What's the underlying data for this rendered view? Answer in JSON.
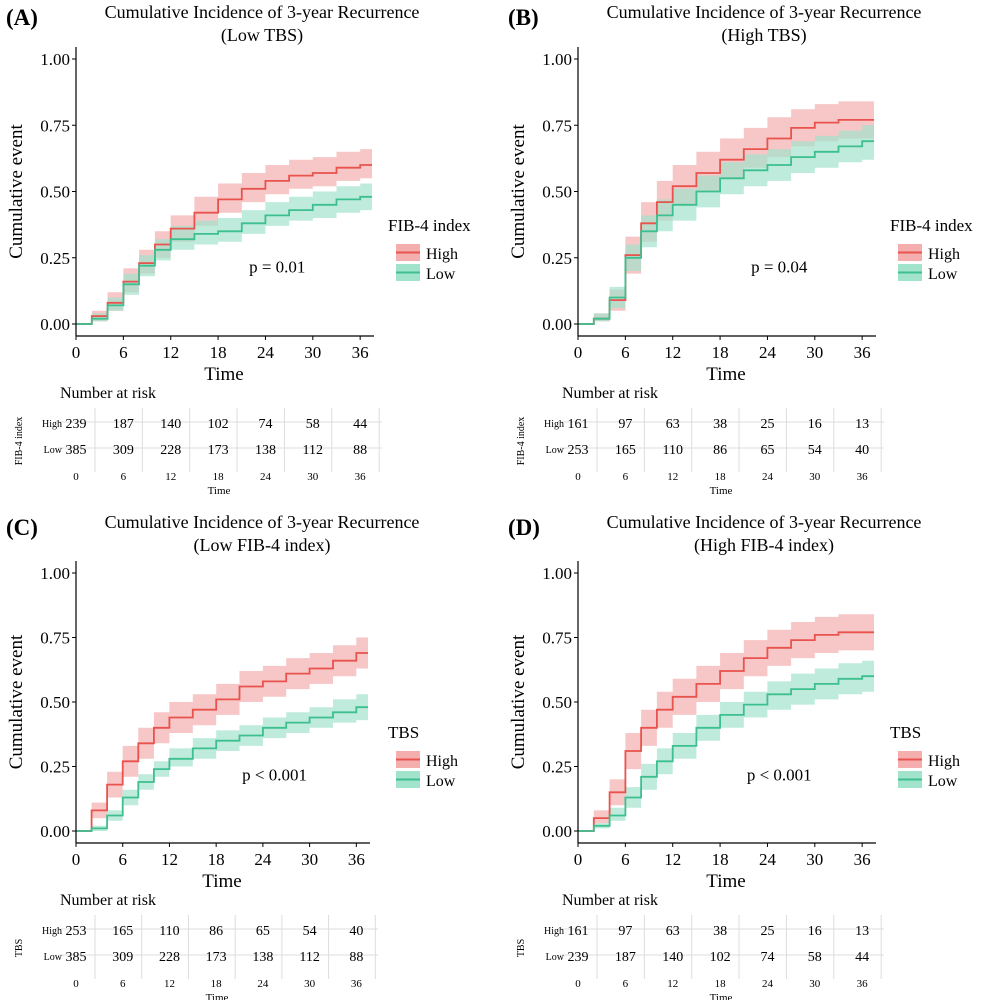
{
  "number_at_risk_label": "Number at risk",
  "x_axis_label": "Time",
  "y_axis_label": "Cumulative event",
  "colors": {
    "high": "#e8534d",
    "low": "#3dbf8f",
    "high_band": "#f4aeae",
    "low_band": "#a2e3cc"
  },
  "chart_data": [
    {
      "panel_label": "(A)",
      "type": "line",
      "title": "Cumulative Incidence of 3-year Recurrence",
      "subtitle": "(Low TBS)",
      "xlabel": "Time",
      "ylabel": "Cumulative event",
      "xlim": [
        0,
        37.5
      ],
      "ylim": [
        0,
        1.0
      ],
      "x_ticks": [
        0,
        6,
        12,
        18,
        24,
        30,
        36
      ],
      "y_ticks": [
        "0.00",
        "0.25",
        "0.50",
        "0.75",
        "1.00"
      ],
      "legend_title": "FIB-4 index",
      "p_value": "p = 0.01",
      "series": [
        {
          "name": "High",
          "x": [
            0,
            2,
            4,
            6,
            8,
            10,
            12,
            15,
            18,
            21,
            24,
            27,
            30,
            33,
            36,
            37.5
          ],
          "values": [
            0,
            0.03,
            0.08,
            0.16,
            0.23,
            0.3,
            0.36,
            0.42,
            0.47,
            0.51,
            0.54,
            0.56,
            0.57,
            0.59,
            0.6,
            0.6
          ],
          "lower": [
            0,
            0.01,
            0.05,
            0.12,
            0.19,
            0.25,
            0.31,
            0.37,
            0.42,
            0.46,
            0.49,
            0.51,
            0.52,
            0.54,
            0.55,
            0.55
          ],
          "upper": [
            0,
            0.05,
            0.12,
            0.21,
            0.28,
            0.35,
            0.41,
            0.48,
            0.53,
            0.57,
            0.6,
            0.62,
            0.63,
            0.65,
            0.66,
            0.66
          ]
        },
        {
          "name": "Low",
          "x": [
            0,
            2,
            4,
            6,
            8,
            10,
            12,
            15,
            18,
            21,
            24,
            27,
            30,
            33,
            36,
            37.5
          ],
          "values": [
            0,
            0.02,
            0.07,
            0.15,
            0.22,
            0.28,
            0.32,
            0.34,
            0.35,
            0.38,
            0.41,
            0.43,
            0.45,
            0.47,
            0.48,
            0.48
          ],
          "lower": [
            0,
            0.01,
            0.05,
            0.11,
            0.18,
            0.24,
            0.28,
            0.3,
            0.31,
            0.34,
            0.37,
            0.39,
            0.4,
            0.42,
            0.43,
            0.43
          ],
          "upper": [
            0,
            0.04,
            0.1,
            0.19,
            0.26,
            0.32,
            0.37,
            0.39,
            0.4,
            0.43,
            0.46,
            0.48,
            0.5,
            0.52,
            0.53,
            0.53
          ]
        }
      ],
      "risk_table": {
        "y_title": "FIB-4 index",
        "x_title": "Time",
        "times": [
          0,
          6,
          12,
          18,
          24,
          30,
          36
        ],
        "rows": [
          {
            "label": "High",
            "values": [
              239,
              187,
              140,
              102,
              74,
              58,
              44
            ]
          },
          {
            "label": "Low",
            "values": [
              385,
              309,
              228,
              173,
              138,
              112,
              88
            ]
          }
        ]
      }
    },
    {
      "panel_label": "(B)",
      "type": "line",
      "title": "Cumulative Incidence of 3-year Recurrence",
      "subtitle": "(High TBS)",
      "xlabel": "Time",
      "ylabel": "Cumulative event",
      "xlim": [
        0,
        37.5
      ],
      "ylim": [
        0,
        1.0
      ],
      "x_ticks": [
        0,
        6,
        12,
        18,
        24,
        30,
        36
      ],
      "y_ticks": [
        "0.00",
        "0.25",
        "0.50",
        "0.75",
        "1.00"
      ],
      "legend_title": "FIB-4 index",
      "p_value": "p = 0.04",
      "series": [
        {
          "name": "High",
          "x": [
            0,
            2,
            4,
            6,
            8,
            10,
            12,
            15,
            18,
            21,
            24,
            27,
            30,
            33,
            36,
            37.5
          ],
          "values": [
            0,
            0.02,
            0.09,
            0.26,
            0.38,
            0.46,
            0.52,
            0.57,
            0.62,
            0.66,
            0.7,
            0.74,
            0.76,
            0.77,
            0.77,
            0.77
          ],
          "lower": [
            0,
            0.01,
            0.05,
            0.19,
            0.31,
            0.39,
            0.45,
            0.5,
            0.55,
            0.59,
            0.63,
            0.67,
            0.69,
            0.7,
            0.7,
            0.7
          ],
          "upper": [
            0,
            0.04,
            0.13,
            0.33,
            0.46,
            0.54,
            0.6,
            0.65,
            0.7,
            0.74,
            0.78,
            0.81,
            0.83,
            0.84,
            0.84,
            0.84
          ]
        },
        {
          "name": "Low",
          "x": [
            0,
            2,
            4,
            6,
            8,
            10,
            12,
            15,
            18,
            21,
            24,
            27,
            30,
            33,
            36,
            37.5
          ],
          "values": [
            0,
            0.02,
            0.1,
            0.25,
            0.35,
            0.41,
            0.45,
            0.5,
            0.55,
            0.58,
            0.6,
            0.63,
            0.65,
            0.67,
            0.69,
            0.69
          ],
          "lower": [
            0,
            0.01,
            0.06,
            0.2,
            0.29,
            0.35,
            0.39,
            0.44,
            0.49,
            0.52,
            0.54,
            0.57,
            0.59,
            0.61,
            0.62,
            0.62
          ],
          "upper": [
            0,
            0.04,
            0.14,
            0.3,
            0.41,
            0.47,
            0.51,
            0.56,
            0.61,
            0.64,
            0.66,
            0.69,
            0.71,
            0.73,
            0.75,
            0.75
          ]
        }
      ],
      "risk_table": {
        "y_title": "FIB-4 index",
        "x_title": "Time",
        "times": [
          0,
          6,
          12,
          18,
          24,
          30,
          36
        ],
        "rows": [
          {
            "label": "High",
            "values": [
              161,
              97,
              63,
              38,
              25,
              16,
              13
            ]
          },
          {
            "label": "Low",
            "values": [
              253,
              165,
              110,
              86,
              65,
              54,
              40
            ]
          }
        ]
      }
    },
    {
      "panel_label": "(C)",
      "type": "line",
      "title": "Cumulative Incidence of 3-year Recurrence",
      "subtitle": "(Low FIB-4 index)",
      "xlabel": "Time",
      "ylabel": "Cumulative event",
      "xlim": [
        0,
        37.5
      ],
      "ylim": [
        0,
        1.0
      ],
      "x_ticks": [
        0,
        6,
        12,
        18,
        24,
        30,
        36
      ],
      "y_ticks": [
        "0.00",
        "0.25",
        "0.50",
        "0.75",
        "1.00"
      ],
      "legend_title": "TBS",
      "p_value": "p < 0.001",
      "series": [
        {
          "name": "High",
          "x": [
            0,
            2,
            4,
            6,
            8,
            10,
            12,
            15,
            18,
            21,
            24,
            27,
            30,
            33,
            36,
            37.5
          ],
          "values": [
            0,
            0.08,
            0.18,
            0.27,
            0.34,
            0.4,
            0.44,
            0.47,
            0.51,
            0.56,
            0.58,
            0.61,
            0.63,
            0.66,
            0.69,
            0.69
          ],
          "lower": [
            0,
            0.05,
            0.13,
            0.21,
            0.28,
            0.34,
            0.38,
            0.41,
            0.45,
            0.5,
            0.52,
            0.55,
            0.57,
            0.6,
            0.63,
            0.63
          ],
          "upper": [
            0,
            0.11,
            0.23,
            0.33,
            0.4,
            0.46,
            0.5,
            0.53,
            0.57,
            0.62,
            0.64,
            0.67,
            0.69,
            0.72,
            0.75,
            0.75
          ]
        },
        {
          "name": "Low",
          "x": [
            0,
            2,
            4,
            6,
            8,
            10,
            12,
            15,
            18,
            21,
            24,
            27,
            30,
            33,
            36,
            37.5
          ],
          "values": [
            0,
            0.01,
            0.06,
            0.13,
            0.19,
            0.24,
            0.28,
            0.32,
            0.35,
            0.37,
            0.4,
            0.42,
            0.44,
            0.46,
            0.48,
            0.48
          ],
          "lower": [
            0,
            0.0,
            0.04,
            0.1,
            0.16,
            0.21,
            0.25,
            0.28,
            0.31,
            0.33,
            0.36,
            0.38,
            0.4,
            0.42,
            0.43,
            0.43
          ],
          "upper": [
            0,
            0.02,
            0.08,
            0.16,
            0.22,
            0.27,
            0.32,
            0.36,
            0.39,
            0.41,
            0.44,
            0.46,
            0.48,
            0.51,
            0.53,
            0.53
          ]
        }
      ],
      "risk_table": {
        "y_title": "TBS",
        "x_title": "Time",
        "times": [
          0,
          6,
          12,
          18,
          24,
          30,
          36
        ],
        "rows": [
          {
            "label": "High",
            "values": [
              253,
              165,
              110,
              86,
              65,
              54,
              40
            ]
          },
          {
            "label": "Low",
            "values": [
              385,
              309,
              228,
              173,
              138,
              112,
              88
            ]
          }
        ]
      }
    },
    {
      "panel_label": "(D)",
      "type": "line",
      "title": "Cumulative Incidence of 3-year Recurrence",
      "subtitle": "(High FIB-4 index)",
      "xlabel": "Time",
      "ylabel": "Cumulative event",
      "xlim": [
        0,
        37.5
      ],
      "ylim": [
        0,
        1.0
      ],
      "x_ticks": [
        0,
        6,
        12,
        18,
        24,
        30,
        36
      ],
      "y_ticks": [
        "0.00",
        "0.25",
        "0.50",
        "0.75",
        "1.00"
      ],
      "legend_title": "TBS",
      "p_value": "p < 0.001",
      "series": [
        {
          "name": "High",
          "x": [
            0,
            2,
            4,
            6,
            8,
            10,
            12,
            15,
            18,
            21,
            24,
            27,
            30,
            33,
            36,
            37.5
          ],
          "values": [
            0,
            0.05,
            0.15,
            0.31,
            0.4,
            0.47,
            0.52,
            0.57,
            0.62,
            0.67,
            0.71,
            0.74,
            0.76,
            0.77,
            0.77,
            0.77
          ],
          "lower": [
            0,
            0.03,
            0.1,
            0.24,
            0.33,
            0.4,
            0.45,
            0.5,
            0.55,
            0.6,
            0.64,
            0.67,
            0.69,
            0.7,
            0.7,
            0.7
          ],
          "upper": [
            0,
            0.08,
            0.2,
            0.38,
            0.47,
            0.54,
            0.59,
            0.64,
            0.69,
            0.74,
            0.78,
            0.81,
            0.83,
            0.84,
            0.84,
            0.84
          ]
        },
        {
          "name": "Low",
          "x": [
            0,
            2,
            4,
            6,
            8,
            10,
            12,
            15,
            18,
            21,
            24,
            27,
            30,
            33,
            36,
            37.5
          ],
          "values": [
            0,
            0.02,
            0.06,
            0.13,
            0.21,
            0.27,
            0.33,
            0.4,
            0.45,
            0.49,
            0.53,
            0.55,
            0.57,
            0.59,
            0.6,
            0.6
          ],
          "lower": [
            0,
            0.01,
            0.04,
            0.09,
            0.16,
            0.22,
            0.28,
            0.35,
            0.4,
            0.44,
            0.47,
            0.49,
            0.51,
            0.53,
            0.54,
            0.54
          ],
          "upper": [
            0,
            0.03,
            0.09,
            0.17,
            0.26,
            0.32,
            0.38,
            0.45,
            0.5,
            0.54,
            0.58,
            0.61,
            0.63,
            0.65,
            0.66,
            0.66
          ]
        }
      ],
      "risk_table": {
        "y_title": "TBS",
        "x_title": "Time",
        "times": [
          0,
          6,
          12,
          18,
          24,
          30,
          36
        ],
        "rows": [
          {
            "label": "High",
            "values": [
              161,
              97,
              63,
              38,
              25,
              16,
              13
            ]
          },
          {
            "label": "Low",
            "values": [
              239,
              187,
              140,
              102,
              74,
              58,
              44
            ]
          }
        ]
      }
    }
  ]
}
